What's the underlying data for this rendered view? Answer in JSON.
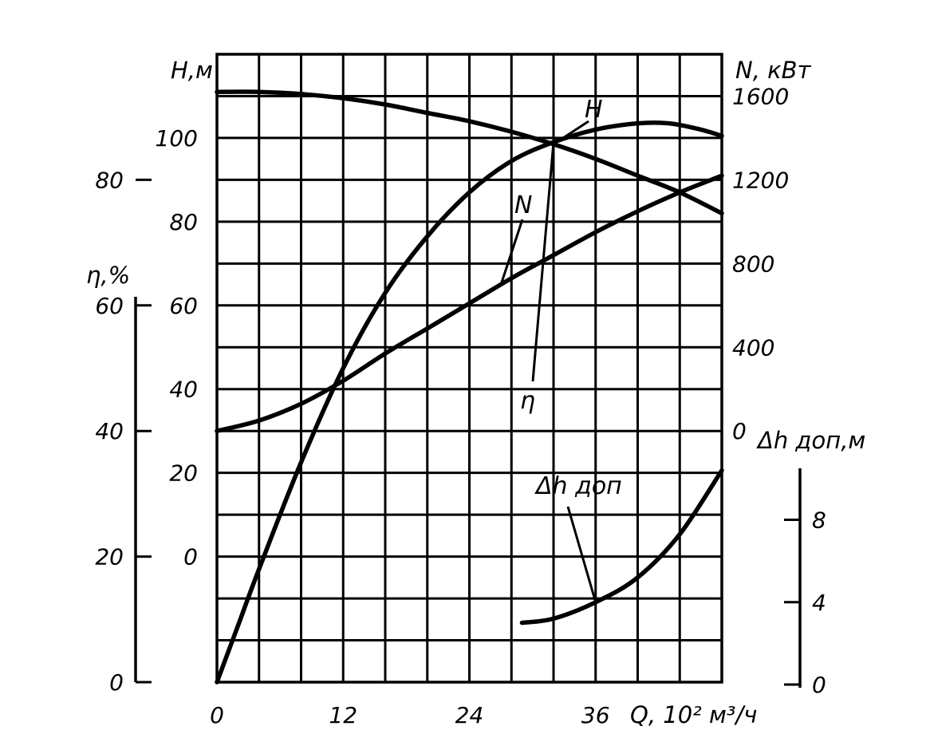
{
  "chart_data": {
    "type": "line",
    "x_axis": {
      "label": "Q, 10² м³/ч",
      "ticks": [
        {
          "value": 0,
          "label": "0"
        },
        {
          "value": 12,
          "label": "12"
        },
        {
          "value": 24,
          "label": "24"
        },
        {
          "value": 36,
          "label": "36"
        }
      ],
      "range": [
        0,
        48
      ]
    },
    "y_axes": {
      "H": {
        "label": "H,м",
        "ticks": [
          {
            "value": 0,
            "label": "0"
          },
          {
            "value": 20,
            "label": "20"
          },
          {
            "value": 40,
            "label": "40"
          },
          {
            "value": 60,
            "label": "60"
          },
          {
            "value": 80,
            "label": "80"
          },
          {
            "value": 100,
            "label": "100"
          }
        ],
        "range": [
          -30,
          120
        ]
      },
      "N": {
        "label": "N, кВт",
        "ticks": [
          {
            "value": 0,
            "label": "0"
          },
          {
            "value": 400,
            "label": "400"
          },
          {
            "value": 800,
            "label": "800"
          },
          {
            "value": 1200,
            "label": "1200"
          },
          {
            "value": 1600,
            "label": "1600"
          }
        ],
        "range": [
          -1200,
          1800
        ]
      },
      "eta": {
        "label": "η,%",
        "ticks": [
          {
            "value": 0,
            "label": "0"
          },
          {
            "value": 20,
            "label": "20"
          },
          {
            "value": 40,
            "label": "40"
          },
          {
            "value": 60,
            "label": "60"
          },
          {
            "value": 80,
            "label": "80"
          }
        ],
        "range": [
          0,
          100
        ]
      },
      "dh": {
        "label": "Δh доп,м",
        "ticks": [
          {
            "value": 0,
            "label": "0"
          },
          {
            "value": 4,
            "label": "4"
          },
          {
            "value": 8,
            "label": "8"
          }
        ],
        "range": [
          0,
          10.5
        ]
      }
    },
    "series": [
      {
        "name": "H",
        "axis": "H",
        "points": [
          [
            0,
            111
          ],
          [
            4,
            111
          ],
          [
            8,
            110.5
          ],
          [
            12,
            109.5
          ],
          [
            16,
            108
          ],
          [
            20,
            106
          ],
          [
            24,
            104
          ],
          [
            28,
            101.5
          ],
          [
            32,
            98.5
          ],
          [
            36,
            95
          ],
          [
            40,
            91
          ],
          [
            44,
            87
          ],
          [
            48,
            82
          ]
        ]
      },
      {
        "name": "N",
        "axis": "N",
        "points": [
          [
            0,
            0
          ],
          [
            4,
            50
          ],
          [
            8,
            130
          ],
          [
            12,
            240
          ],
          [
            16,
            370
          ],
          [
            20,
            490
          ],
          [
            24,
            610
          ],
          [
            28,
            730
          ],
          [
            32,
            840
          ],
          [
            36,
            950
          ],
          [
            40,
            1050
          ],
          [
            44,
            1140
          ],
          [
            48,
            1220
          ]
        ]
      },
      {
        "name": "η",
        "axis": "eta",
        "points": [
          [
            0,
            0
          ],
          [
            2,
            9
          ],
          [
            4,
            18
          ],
          [
            8,
            35
          ],
          [
            12,
            50
          ],
          [
            16,
            62
          ],
          [
            20,
            71
          ],
          [
            24,
            78
          ],
          [
            28,
            83
          ],
          [
            32,
            86
          ],
          [
            36,
            88
          ],
          [
            40,
            89
          ],
          [
            43,
            89
          ],
          [
            46,
            88
          ],
          [
            48,
            87
          ]
        ]
      },
      {
        "name": "Δh доп",
        "axis": "dh",
        "points": [
          [
            29,
            3
          ],
          [
            32,
            3.2
          ],
          [
            36,
            4
          ],
          [
            40,
            5.2
          ],
          [
            44,
            7.3
          ],
          [
            48,
            10.4
          ]
        ]
      }
    ]
  }
}
